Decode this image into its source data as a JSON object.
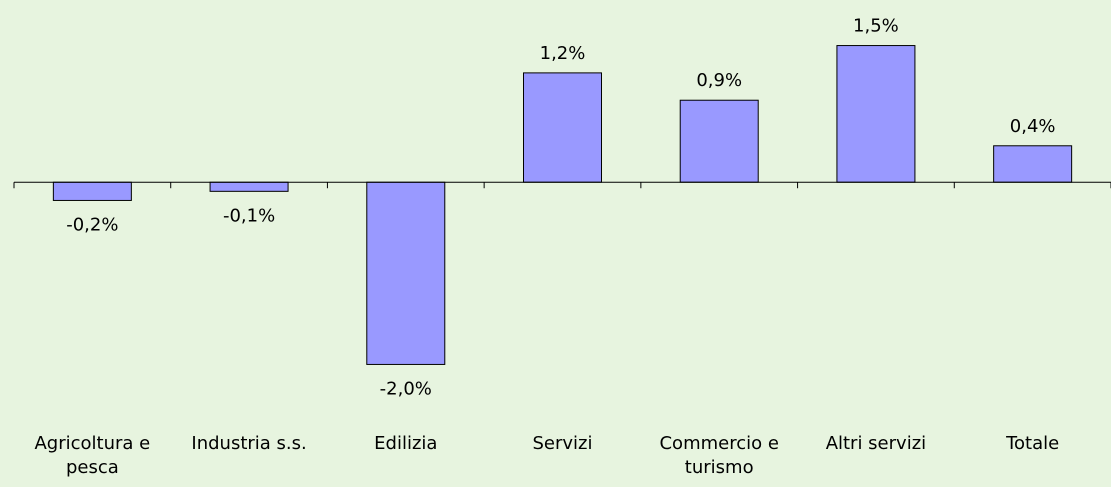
{
  "chart_data": {
    "type": "bar",
    "categories": [
      "Agricoltura e pesca",
      "Industria s.s.",
      "Edilizia",
      "Servizi",
      "Commercio e turismo",
      "Altri servizi",
      "Totale"
    ],
    "values": [
      -0.2,
      -0.1,
      -2.0,
      1.2,
      0.9,
      1.5,
      0.4
    ],
    "value_labels": [
      "-0,2%",
      "-0,1%",
      "-2,0%",
      "1,2%",
      "0,9%",
      "1,5%",
      "0,4%"
    ],
    "color": "#9999ff",
    "ylim": [
      -2.5,
      2.0
    ]
  }
}
